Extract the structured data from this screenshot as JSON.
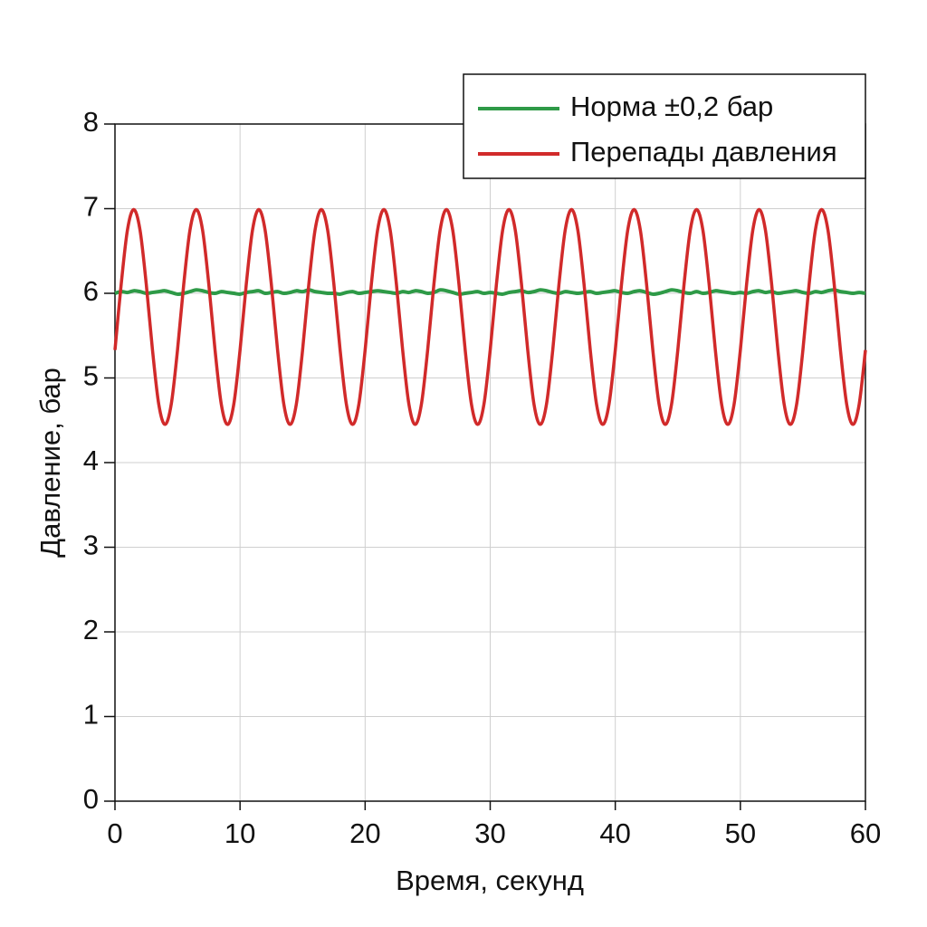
{
  "chart_data": {
    "type": "line",
    "xlabel": "Время, секунд",
    "ylabel": "Давление, бар",
    "x": [
      0,
      0.5,
      1,
      1.5,
      2,
      2.5,
      3,
      3.5,
      4,
      4.5,
      5,
      5.5,
      6,
      6.5,
      7,
      7.5,
      8,
      8.5,
      9,
      9.5,
      10,
      10.5,
      11,
      11.5,
      12,
      12.5,
      13,
      13.5,
      14,
      14.5,
      15,
      15.5,
      16,
      16.5,
      17,
      17.5,
      18,
      18.5,
      19,
      19.5,
      20,
      20.5,
      21,
      21.5,
      22,
      22.5,
      23,
      23.5,
      24,
      24.5,
      25,
      25.5,
      26,
      26.5,
      27,
      27.5,
      28,
      28.5,
      29,
      29.5,
      30,
      30.5,
      31,
      31.5,
      32,
      32.5,
      33,
      33.5,
      34,
      34.5,
      35,
      35.5,
      36,
      36.5,
      37,
      37.5,
      38,
      38.5,
      39,
      39.5,
      40,
      40.5,
      41,
      41.5,
      42,
      42.5,
      43,
      43.5,
      44,
      44.5,
      45,
      45.5,
      46,
      46.5,
      47,
      47.5,
      48,
      48.5,
      49,
      49.5,
      50,
      50.5,
      51,
      51.5,
      52,
      52.5,
      53,
      53.5,
      54,
      54.5,
      55,
      55.5,
      56,
      56.5,
      57,
      57.5,
      58,
      58.5,
      59,
      59.5,
      60
    ],
    "series": [
      {
        "name": "Норма ±0,2 бар",
        "color": "#2e9a47",
        "values": [
          6.0,
          6.02,
          6.01,
          6.03,
          6.02,
          6.0,
          6.01,
          6.02,
          6.03,
          6.01,
          5.99,
          6.0,
          6.02,
          6.04,
          6.03,
          6.01,
          6.0,
          6.02,
          6.01,
          6.0,
          5.99,
          6.01,
          6.02,
          6.03,
          6.0,
          6.01,
          6.02,
          6.0,
          6.01,
          6.03,
          6.02,
          6.04,
          6.02,
          6.01,
          6.0,
          6.0,
          5.99,
          6.01,
          6.02,
          6.0,
          6.01,
          6.02,
          6.03,
          6.02,
          6.01,
          6.0,
          6.02,
          6.01,
          6.03,
          6.02,
          6.0,
          6.01,
          6.04,
          6.03,
          6.01,
          5.99,
          6.0,
          6.01,
          6.02,
          6.0,
          6.01,
          6.0,
          5.99,
          6.01,
          6.02,
          6.03,
          6.01,
          6.02,
          6.04,
          6.03,
          6.01,
          6.0,
          6.02,
          6.01,
          6.0,
          6.01,
          6.02,
          6.0,
          6.01,
          6.02,
          6.03,
          6.01,
          6.0,
          6.02,
          6.03,
          6.01,
          5.99,
          6.0,
          6.02,
          6.04,
          6.03,
          6.01,
          6.0,
          6.02,
          6.0,
          6.01,
          6.03,
          6.02,
          6.01,
          6.0,
          6.01,
          6.0,
          6.02,
          6.03,
          6.01,
          6.02,
          6.0,
          6.01,
          6.02,
          6.03,
          6.01,
          6.0,
          6.02,
          6.01,
          6.03,
          6.04,
          6.02,
          6.01,
          6.0,
          6.01,
          6.0
        ]
      },
      {
        "name": "Перепады давления",
        "color": "#d12a2a",
        "values": [
          5.33,
          6.11,
          6.75,
          6.99,
          6.75,
          6.11,
          5.33,
          4.69,
          4.45,
          4.69,
          5.33,
          6.11,
          6.75,
          6.99,
          6.75,
          6.11,
          5.33,
          4.69,
          4.45,
          4.69,
          5.33,
          6.11,
          6.75,
          6.99,
          6.75,
          6.11,
          5.33,
          4.69,
          4.45,
          4.69,
          5.33,
          6.11,
          6.75,
          6.99,
          6.75,
          6.11,
          5.33,
          4.69,
          4.45,
          4.69,
          5.33,
          6.11,
          6.75,
          6.99,
          6.75,
          6.11,
          5.33,
          4.69,
          4.45,
          4.69,
          5.33,
          6.11,
          6.75,
          6.99,
          6.75,
          6.11,
          5.33,
          4.69,
          4.45,
          4.69,
          5.33,
          6.11,
          6.75,
          6.99,
          6.75,
          6.11,
          5.33,
          4.69,
          4.45,
          4.69,
          5.33,
          6.11,
          6.75,
          6.99,
          6.75,
          6.11,
          5.33,
          4.69,
          4.45,
          4.69,
          5.33,
          6.11,
          6.75,
          6.99,
          6.75,
          6.11,
          5.33,
          4.69,
          4.45,
          4.69,
          5.33,
          6.11,
          6.75,
          6.99,
          6.75,
          6.11,
          5.33,
          4.69,
          4.45,
          4.69,
          5.33,
          6.11,
          6.75,
          6.99,
          6.75,
          6.11,
          5.33,
          4.69,
          4.45,
          4.69,
          5.33,
          6.11,
          6.75,
          6.99,
          6.75,
          6.11,
          5.33,
          4.69,
          4.45,
          4.69,
          5.33
        ]
      }
    ],
    "xlim": [
      0,
      60
    ],
    "xticks": [
      0,
      10,
      20,
      30,
      40,
      50,
      60
    ],
    "ylim": [
      0,
      8
    ],
    "yticks": [
      0,
      1,
      2,
      3,
      4,
      5,
      6,
      7,
      8
    ],
    "grid": true,
    "legend": "upper right"
  }
}
